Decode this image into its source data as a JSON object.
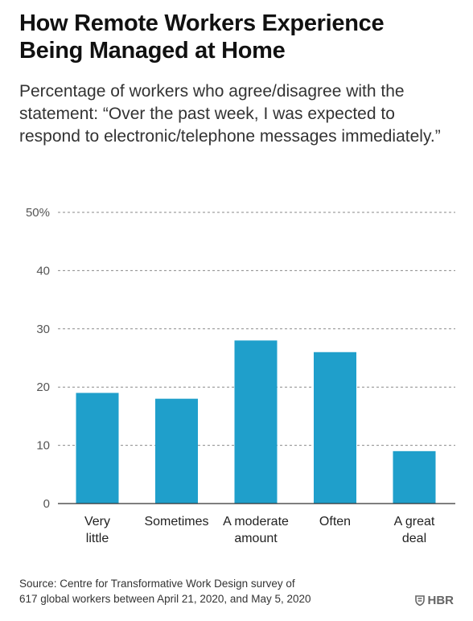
{
  "header": {
    "title_line1": "How Remote Workers Experience",
    "title_line2": "Being Managed at Home",
    "subtitle": "Percentage of workers who agree/disagree with the statement: “Over the past week, I was expected to respond to electronic/telephone messages immediately.”"
  },
  "footer": {
    "source_line1": "Source: Centre for Transformative Work Design survey of",
    "source_line2": "617 global workers between April 21, 2020, and May 5, 2020",
    "logo_text": "HBR",
    "logo_icon": "shield-icon"
  },
  "colors": {
    "bar": "#1f9fcb",
    "grid": "#8a8a8a",
    "axis": "#333333"
  },
  "chart_data": {
    "type": "bar",
    "categories": [
      [
        "Very",
        "little"
      ],
      [
        "Sometimes"
      ],
      [
        "A moderate",
        "amount"
      ],
      [
        "Often"
      ],
      [
        "A great",
        "deal"
      ]
    ],
    "values": [
      19,
      18,
      28,
      26,
      9
    ],
    "ylim": [
      0,
      50
    ],
    "yticks": [
      0,
      10,
      20,
      30,
      40,
      50
    ],
    "ytick_labels": [
      "0",
      "10",
      "20",
      "30",
      "40",
      "50%"
    ],
    "grid": true,
    "xlabel": "",
    "ylabel": ""
  }
}
